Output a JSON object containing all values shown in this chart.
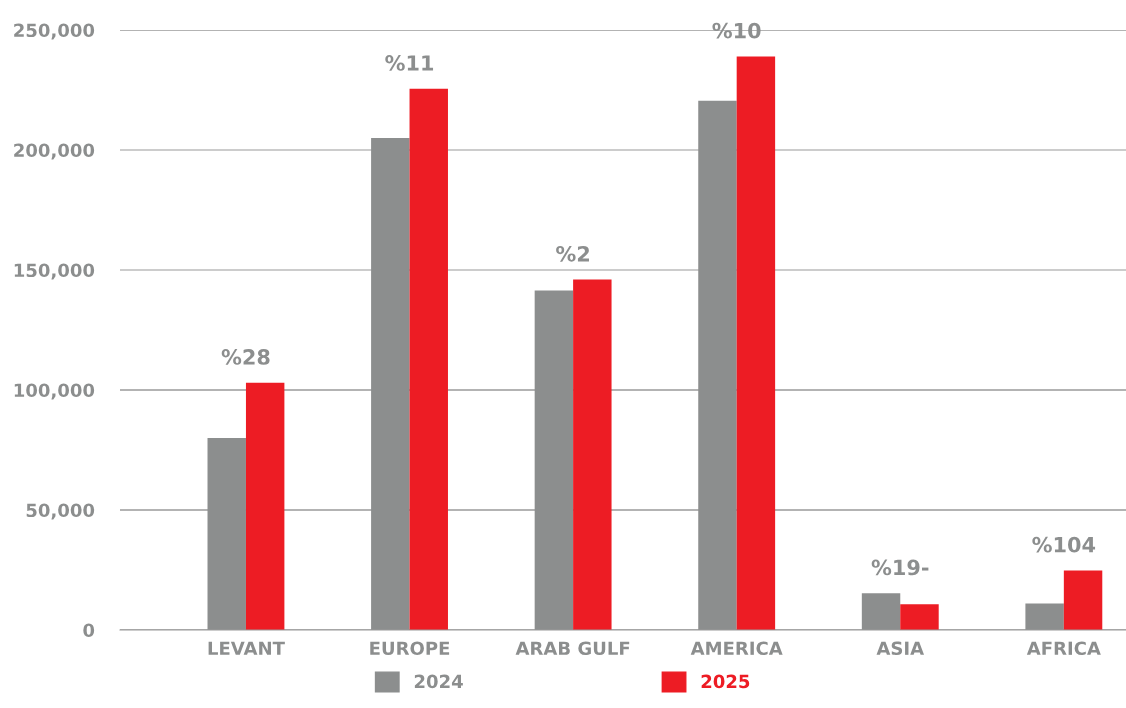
{
  "chart_data": {
    "type": "bar",
    "categories": [
      "LEVANT",
      "EUROPE",
      "ARAB GULF",
      "AMERICA",
      "ASIA",
      "AFRICA"
    ],
    "series": [
      {
        "name": "2024",
        "color": "#8c8e8e",
        "values": [
          80000,
          205000,
          141500,
          220500,
          15300,
          11000
        ]
      },
      {
        "name": "2025",
        "color": "#ed1c24",
        "values": [
          103000,
          225500,
          146000,
          239000,
          10700,
          24800
        ]
      }
    ],
    "ylim": [
      0,
      250000
    ],
    "yticks": [
      {
        "value": 0,
        "label": "0"
      },
      {
        "value": 50000,
        "label": "50,000"
      },
      {
        "value": 100000,
        "label": "100,000"
      },
      {
        "value": 150000,
        "label": "150,000"
      },
      {
        "value": 200000,
        "label": "200,000"
      },
      {
        "value": 250000,
        "label": "250,000"
      }
    ],
    "annotations": [
      {
        "text": "%28",
        "x": "LEVANT",
        "y": 103000
      },
      {
        "text": "%11",
        "x": "EUROPE",
        "y": 225500
      },
      {
        "text": "%2",
        "x": "ARAB GULF",
        "y": 146000
      },
      {
        "text": "%10",
        "x": "AMERICA",
        "y": 239000
      },
      {
        "text": "%19-",
        "x": "ASIA",
        "y": 15300
      },
      {
        "text": "%104",
        "x": "AFRICA",
        "y": 24800
      }
    ],
    "grid": "y",
    "legend": "bottom"
  }
}
